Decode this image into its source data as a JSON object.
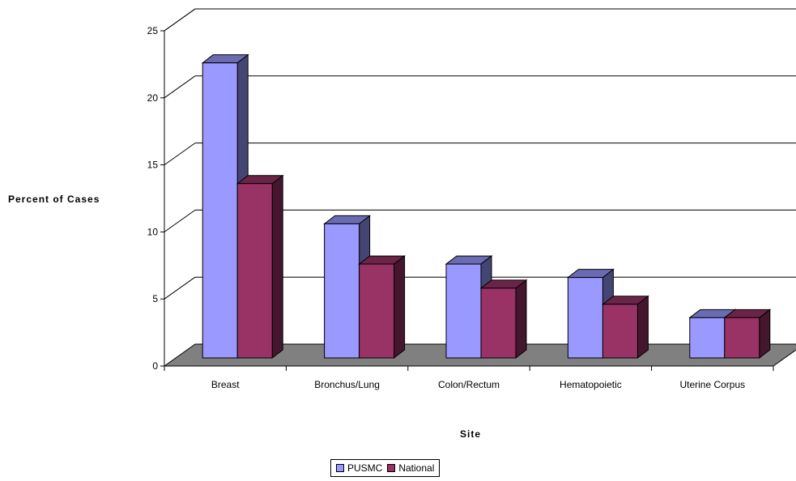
{
  "chart_data": {
    "type": "bar",
    "title": "",
    "xlabel": "Site",
    "ylabel": "Percent of Cases",
    "categories": [
      "Breast",
      "Bronchus/Lung",
      "Colon/Rectum",
      "Hematopoietic",
      "Uterine Corpus"
    ],
    "series": [
      {
        "name": "PUSMC",
        "values": [
          22,
          10,
          7,
          6,
          3
        ],
        "color": "#9999FF"
      },
      {
        "name": "National",
        "values": [
          13,
          7,
          5.2,
          4,
          3
        ],
        "color": "#993366"
      }
    ],
    "ylim": [
      0,
      25
    ],
    "yticks": [
      "0",
      "5",
      "10",
      "15",
      "20",
      "25"
    ],
    "grid": true,
    "legend_position": "bottom",
    "floor_color": "#808080"
  }
}
